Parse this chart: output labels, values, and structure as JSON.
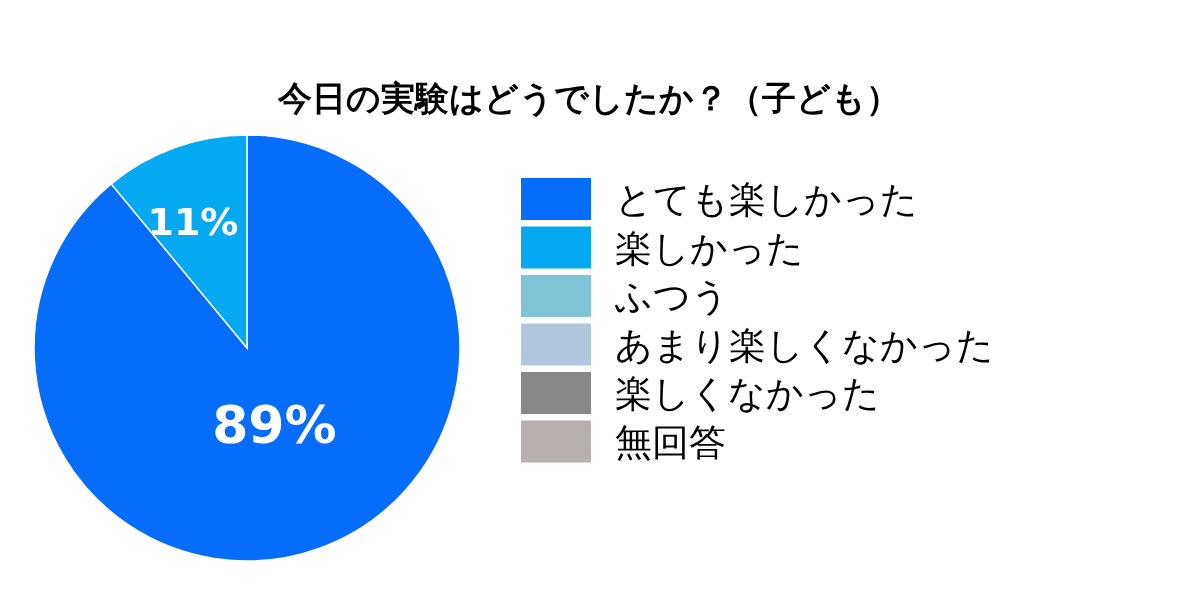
{
  "chart_data": {
    "type": "pie",
    "title": "今日の実験はどうでしたか？（子ども）",
    "categories": [
      "とても楽しかった",
      "楽しかった",
      "ふつう",
      "あまり楽しくなかった",
      "楽しくなかった",
      "無回答"
    ],
    "values": [
      89,
      11,
      0,
      0,
      0,
      0
    ],
    "value_labels": [
      "89%",
      "11%",
      null,
      null,
      null,
      null
    ],
    "colors": [
      "#066cfa",
      "#04a9f2",
      "#80c4d8",
      "#b0c6da",
      "#888888",
      "#b7b0ae"
    ],
    "legend": "right"
  }
}
